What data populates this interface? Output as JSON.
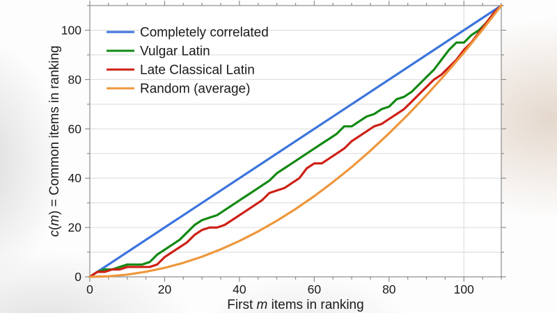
{
  "chart_data": {
    "type": "line",
    "title": "",
    "xlabel_parts": [
      {
        "text": "First ",
        "italic": false
      },
      {
        "text": "m",
        "italic": true
      },
      {
        "text": " items in ranking",
        "italic": false
      }
    ],
    "ylabel_parts": [
      {
        "text": "c",
        "italic": true
      },
      {
        "text": "(",
        "italic": false
      },
      {
        "text": "m",
        "italic": true
      },
      {
        "text": ") = Common items in ranking",
        "italic": false
      }
    ],
    "xlim": [
      0,
      110
    ],
    "ylim": [
      0,
      110
    ],
    "x_tick_labels": [
      0,
      20,
      40,
      60,
      80,
      100
    ],
    "x_minor_tick_step": 5,
    "y_tick_labels": [
      0,
      20,
      40,
      60,
      80,
      100
    ],
    "y_minor_tick_step": 10,
    "y_grid_step": 10,
    "extra_vertical_gridlines": [
      100
    ],
    "grid": true,
    "legend_position": "top-left",
    "colors": {
      "grid": "#d9d9d9",
      "axis": "#8c8c8c",
      "text": "#1a1a1a",
      "plot_background": "#ffffff"
    },
    "series": [
      {
        "name": "Completely correlated",
        "color": "#3b74dc",
        "x": [
          0,
          110
        ],
        "y": [
          0,
          110
        ]
      },
      {
        "name": "Vulgar Latin",
        "color": "#128912",
        "x": [
          0,
          2,
          4,
          6,
          8,
          10,
          12,
          14,
          16,
          18,
          20,
          22,
          24,
          26,
          28,
          30,
          32,
          34,
          36,
          38,
          40,
          42,
          44,
          46,
          48,
          50,
          52,
          54,
          56,
          58,
          60,
          62,
          64,
          66,
          68,
          70,
          72,
          74,
          76,
          78,
          80,
          82,
          84,
          86,
          88,
          90,
          92,
          94,
          96,
          98,
          100,
          102,
          104,
          106,
          108,
          110
        ],
        "y": [
          0,
          2,
          3,
          3,
          4,
          5,
          5,
          5,
          6,
          9,
          11,
          13,
          15,
          18,
          21,
          23,
          24,
          25,
          27,
          29,
          31,
          33,
          35,
          37,
          39,
          42,
          44,
          46,
          48,
          50,
          52,
          54,
          56,
          58,
          61,
          61,
          63,
          65,
          66,
          68,
          69,
          72,
          73,
          75,
          78,
          81,
          84,
          88,
          92,
          95,
          95,
          98,
          100,
          103,
          107,
          110
        ]
      },
      {
        "name": "Late Classical Latin",
        "color": "#cd2016",
        "x": [
          0,
          2,
          4,
          6,
          8,
          10,
          12,
          14,
          16,
          18,
          20,
          22,
          24,
          26,
          28,
          30,
          32,
          34,
          36,
          38,
          40,
          42,
          44,
          46,
          48,
          50,
          52,
          54,
          56,
          58,
          60,
          62,
          64,
          66,
          68,
          70,
          72,
          74,
          76,
          78,
          80,
          82,
          84,
          86,
          88,
          90,
          92,
          94,
          96,
          98,
          100,
          102,
          104,
          106,
          108,
          110
        ],
        "y": [
          0,
          2,
          2,
          3,
          3,
          4,
          4,
          4,
          4,
          5,
          8,
          10,
          12,
          14,
          17,
          19,
          20,
          20,
          21,
          23,
          25,
          27,
          29,
          31,
          34,
          35,
          36,
          38,
          40,
          44,
          46,
          46,
          48,
          50,
          52,
          55,
          57,
          59,
          61,
          62,
          64,
          66,
          68,
          71,
          74,
          77,
          80,
          82,
          85,
          88,
          92,
          95,
          99,
          103,
          107,
          110
        ]
      },
      {
        "name": "Random (average)",
        "color": "#ee973c",
        "x": [
          0,
          5,
          10,
          15,
          20,
          25,
          30,
          35,
          40,
          45,
          50,
          55,
          60,
          65,
          70,
          75,
          80,
          85,
          90,
          95,
          100,
          105,
          110
        ],
        "y": [
          0,
          0.23,
          0.91,
          2.05,
          3.64,
          5.68,
          8.18,
          11.14,
          14.55,
          18.41,
          22.73,
          27.5,
          32.73,
          38.41,
          44.55,
          51.14,
          58.18,
          65.68,
          73.64,
          82.05,
          90.91,
          100.23,
          110
        ]
      }
    ]
  }
}
